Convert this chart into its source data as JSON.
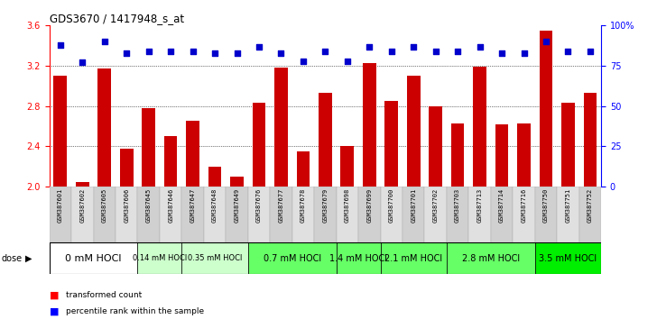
{
  "title": "GDS3670 / 1417948_s_at",
  "samples": [
    "GSM387601",
    "GSM387602",
    "GSM387605",
    "GSM387606",
    "GSM387645",
    "GSM387646",
    "GSM387647",
    "GSM387648",
    "GSM387649",
    "GSM387676",
    "GSM387677",
    "GSM387678",
    "GSM387679",
    "GSM387698",
    "GSM387699",
    "GSM387700",
    "GSM387701",
    "GSM387702",
    "GSM387703",
    "GSM387713",
    "GSM387714",
    "GSM387716",
    "GSM387750",
    "GSM387751",
    "GSM387752"
  ],
  "bar_values": [
    3.1,
    2.05,
    3.17,
    2.38,
    2.78,
    2.5,
    2.65,
    2.2,
    2.1,
    2.83,
    3.18,
    2.35,
    2.93,
    2.4,
    3.23,
    2.85,
    3.1,
    2.8,
    2.63,
    3.19,
    2.62,
    2.63,
    3.55,
    2.83,
    2.93
  ],
  "percentile_values": [
    88,
    77,
    90,
    83,
    84,
    84,
    84,
    83,
    83,
    87,
    83,
    78,
    84,
    78,
    87,
    84,
    87,
    84,
    84,
    87,
    83,
    83,
    90,
    84,
    84
  ],
  "dose_groups": [
    {
      "label": "0 mM HOCl",
      "start": 0,
      "end": 4,
      "color": "#ffffff",
      "fontsize": 8
    },
    {
      "label": "0.14 mM HOCl",
      "start": 4,
      "end": 6,
      "color": "#ccffcc",
      "fontsize": 6
    },
    {
      "label": "0.35 mM HOCl",
      "start": 6,
      "end": 9,
      "color": "#ccffcc",
      "fontsize": 6
    },
    {
      "label": "0.7 mM HOCl",
      "start": 9,
      "end": 13,
      "color": "#66ff66",
      "fontsize": 7
    },
    {
      "label": "1.4 mM HOCl",
      "start": 13,
      "end": 15,
      "color": "#66ff66",
      "fontsize": 7
    },
    {
      "label": "2.1 mM HOCl",
      "start": 15,
      "end": 18,
      "color": "#66ff66",
      "fontsize": 7
    },
    {
      "label": "2.8 mM HOCl",
      "start": 18,
      "end": 22,
      "color": "#66ff66",
      "fontsize": 7
    },
    {
      "label": "3.5 mM HOCl",
      "start": 22,
      "end": 25,
      "color": "#00ee00",
      "fontsize": 7
    }
  ],
  "ylim": [
    2.0,
    3.6
  ],
  "y2lim": [
    0,
    100
  ],
  "yticks": [
    2.0,
    2.4,
    2.8,
    3.2,
    3.6
  ],
  "y2ticks": [
    0,
    25,
    50,
    75,
    100
  ],
  "y2ticklabels": [
    "0",
    "25",
    "50",
    "75",
    "100%"
  ],
  "bar_color": "#cc0000",
  "dot_color": "#0000cc",
  "grid_levels": [
    2.4,
    2.8,
    3.2
  ]
}
